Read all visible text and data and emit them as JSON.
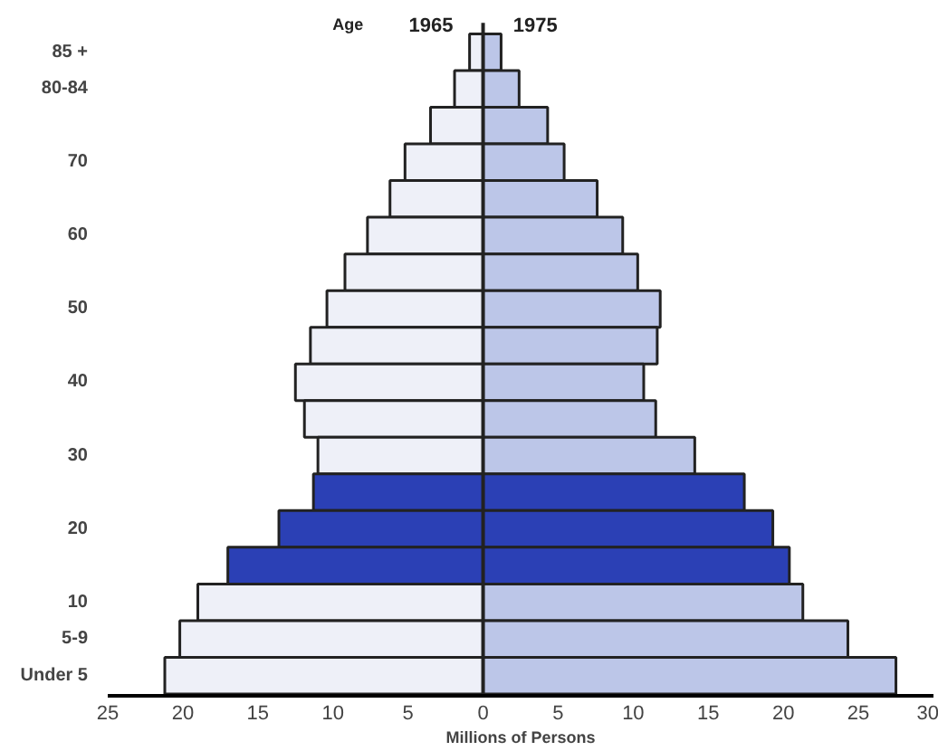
{
  "chart_data": {
    "type": "bar",
    "orientation": "horizontal",
    "stacked": true,
    "xlabel": "Millions of Persons",
    "ylabel": "Age",
    "categories": [
      "85 +",
      "80-84",
      null,
      "70",
      null,
      "60",
      null,
      "50",
      null,
      "40",
      null,
      "30",
      null,
      "20",
      null,
      "10",
      "5-9",
      "Under 5"
    ],
    "series": [
      {
        "name": "1965",
        "values": [
          -0.9,
          -1.9,
          -3.5,
          -5.2,
          -6.2,
          -7.7,
          -9.2,
          -10.4,
          -11.5,
          -12.5,
          -11.9,
          -11.0,
          -11.3,
          -13.6,
          -17.0,
          -19.0,
          -20.2,
          -21.2
        ],
        "colors": [
          "#eef0f8",
          "#eef0f8",
          "#eef0f8",
          "#eef0f8",
          "#eef0f8",
          "#eef0f8",
          "#eef0f8",
          "#eef0f8",
          "#eef0f8",
          "#eef0f8",
          "#eef0f8",
          "#eef0f8",
          "#2b40b5",
          "#2b40b5",
          "#2b40b5",
          "#eef0f8",
          "#eef0f8",
          "#eef0f8"
        ]
      },
      {
        "name": "1975",
        "values": [
          1.2,
          2.4,
          4.3,
          5.4,
          7.6,
          9.3,
          10.3,
          11.8,
          11.6,
          10.7,
          11.5,
          14.1,
          17.4,
          19.3,
          20.4,
          21.3,
          24.3,
          27.5
        ],
        "colors": [
          "#bcc6e8",
          "#bcc6e8",
          "#bcc6e8",
          "#bcc6e8",
          "#bcc6e8",
          "#bcc6e8",
          "#bcc6e8",
          "#bcc6e8",
          "#bcc6e8",
          "#bcc6e8",
          "#bcc6e8",
          "#bcc6e8",
          "#2b40b5",
          "#2b40b5",
          "#2b40b5",
          "#bcc6e8",
          "#bcc6e8",
          "#bcc6e8"
        ]
      }
    ],
    "xlim": [
      -25,
      30
    ],
    "xticks": [
      {
        "value": -25,
        "label": "25"
      },
      {
        "value": -20,
        "label": "20"
      },
      {
        "value": -15,
        "label": "15"
      },
      {
        "value": -10,
        "label": "10"
      },
      {
        "value": -5,
        "label": "5"
      },
      0,
      5,
      10,
      15,
      20,
      25,
      30
    ]
  }
}
